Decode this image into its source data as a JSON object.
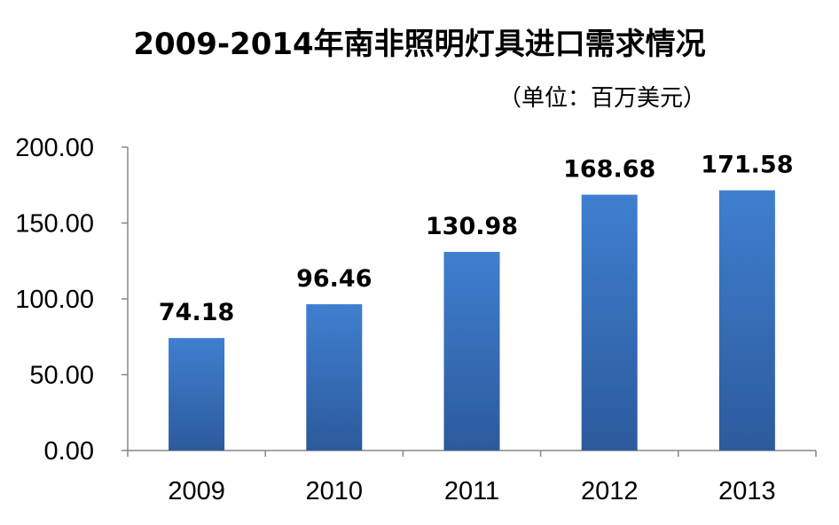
{
  "chart_data": {
    "type": "bar",
    "title": "2009-2014年南非照明灯具进口需求情况",
    "subtitle": "（单位：百万美元）",
    "categories": [
      "2009",
      "2010",
      "2011",
      "2012",
      "2013"
    ],
    "values": [
      74.18,
      96.46,
      130.98,
      168.68,
      171.58
    ],
    "value_labels": [
      "74.18",
      "96.46",
      "130.98",
      "168.68",
      "171.58"
    ],
    "y_ticks": [
      "0.00",
      "50.00",
      "100.00",
      "150.00",
      "200.00"
    ],
    "ylim": [
      0,
      200
    ],
    "grid": false,
    "legend": "none",
    "bar_color_top": "#3f7fd0",
    "bar_color_bottom": "#2c5a9c"
  }
}
